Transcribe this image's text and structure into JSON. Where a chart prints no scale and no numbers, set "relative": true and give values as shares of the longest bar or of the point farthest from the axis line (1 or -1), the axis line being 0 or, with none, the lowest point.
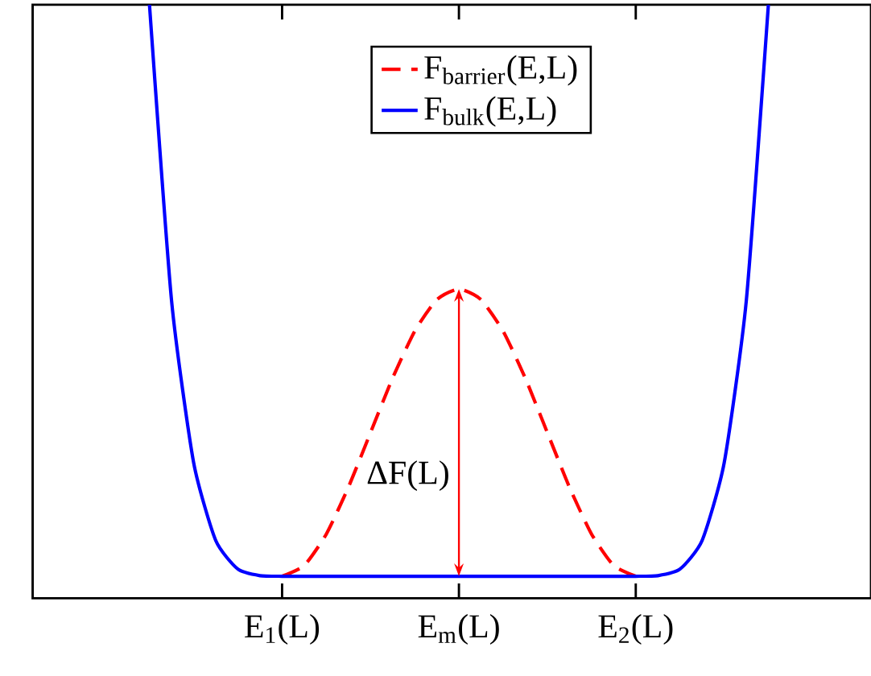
{
  "chart_data": {
    "type": "line",
    "relative": true,
    "categories": [
      null,
      null,
      null,
      null,
      null,
      null,
      "E$_{1}$(L)",
      null,
      null,
      null,
      null,
      null,
      null,
      null,
      "E$_{m}$(L)",
      null,
      null,
      null,
      null,
      null,
      null,
      null,
      "E$_{2}$(L)",
      null,
      null,
      null,
      null,
      null,
      null
    ],
    "series": [
      {
        "name": "F$_{barrier}$(E,L)",
        "color": "#ff0000",
        "line_style": "dashed",
        "values": [
          null,
          null,
          null,
          null,
          null,
          null,
          0.037,
          0.055,
          0.108,
          0.187,
          0.279,
          0.371,
          0.45,
          0.503,
          0.521,
          0.503,
          0.45,
          0.371,
          0.279,
          0.187,
          0.108,
          0.055,
          0.037,
          null,
          null,
          null,
          null,
          null,
          null
        ]
      },
      {
        "name": "F$_{bulk}$(E,L)",
        "color": "#0000ff",
        "line_style": "solid",
        "values": [
          1.0,
          0.501,
          0.228,
          0.097,
          0.049,
          0.038,
          0.037,
          0.037,
          0.037,
          0.037,
          0.037,
          0.037,
          0.037,
          0.037,
          0.037,
          0.037,
          0.037,
          0.037,
          0.037,
          0.037,
          0.037,
          0.037,
          0.037,
          0.038,
          0.049,
          0.097,
          0.228,
          0.501,
          1.0
        ]
      }
    ],
    "annotations": [
      "ΔF(L)"
    ],
    "legend": "top"
  }
}
